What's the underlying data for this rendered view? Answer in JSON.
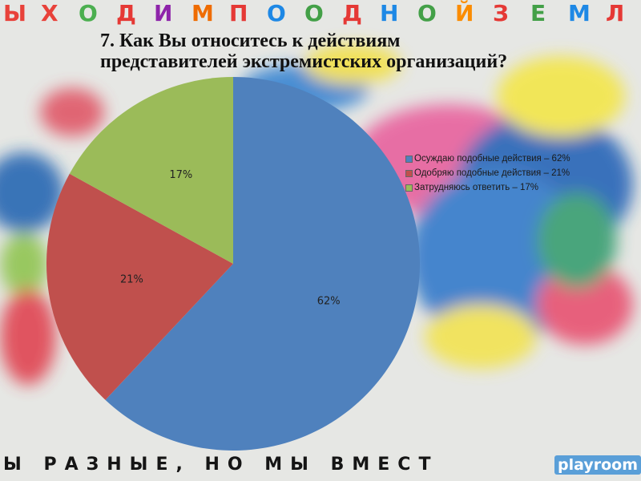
{
  "background": {
    "top_banner_letters": [
      "Ы",
      "Х",
      "О",
      "Д",
      "И",
      "М",
      "П",
      "О",
      "О",
      "Д",
      "Н",
      "О",
      "Й",
      "З",
      "Е",
      "М",
      "Л"
    ],
    "bottom_banner": "Ы РАЗНЫЕ, НО МЫ ВМЕСТ",
    "logo": "playroom"
  },
  "chart_data": {
    "type": "pie",
    "title": "7. Как Вы относитесь к действиям представителей экстремистских организаций?",
    "title_lines": [
      "7. Как Вы относитесь к действиям",
      "представителей экстремистских организаций?"
    ],
    "categories": [
      "Осуждаю подобные действия – 62%",
      "Одобряю подобные действия – 21%",
      "Затрудняюсь ответить – 17%"
    ],
    "values": [
      62,
      21,
      17
    ],
    "data_labels": [
      "62%",
      "21%",
      "17%"
    ],
    "colors": [
      "#4f81bd",
      "#c0504d",
      "#9bbb59"
    ],
    "start_angle": "12 o'clock",
    "direction": "clockwise",
    "legend_position": "right"
  }
}
